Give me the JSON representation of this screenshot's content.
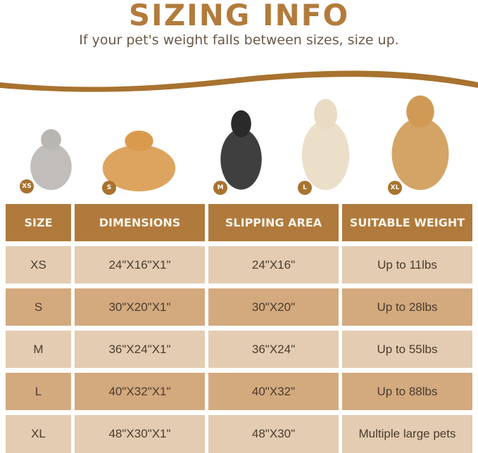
{
  "title": "SIZING INFO",
  "subtitle": "If your pet's weight falls between sizes, size up.",
  "colors": {
    "brand": "#b07a3c",
    "row_light": "#e3ccb1",
    "row_dark": "#d3a97e"
  },
  "pets": [
    {
      "badge": "XS",
      "animal": "cat"
    },
    {
      "badge": "S",
      "animal": "corgi"
    },
    {
      "badge": "M",
      "animal": "border-collie"
    },
    {
      "badge": "L",
      "animal": "golden-retriever"
    },
    {
      "badge": "XL",
      "animal": "golden-retriever"
    }
  ],
  "table": {
    "headers": [
      "SIZE",
      "DIMENSIONS",
      "SLIPPING AREA",
      "SUITABLE WEIGHT"
    ],
    "rows": [
      [
        "XS",
        "24\"X16\"X1\"",
        "24\"X16\"",
        "Up to 11lbs"
      ],
      [
        "S",
        "30\"X20\"X1\"",
        "30\"X20\"",
        "Up to 28lbs"
      ],
      [
        "M",
        "36\"X24\"X1\"",
        "36\"X24\"",
        "Up to 55lbs"
      ],
      [
        "L",
        "40\"X32\"X1\"",
        "40\"X32\"",
        "Up to 88lbs"
      ],
      [
        "XL",
        "48\"X30\"X1\"",
        "48\"X30\"",
        "Multiple large pets"
      ]
    ]
  }
}
